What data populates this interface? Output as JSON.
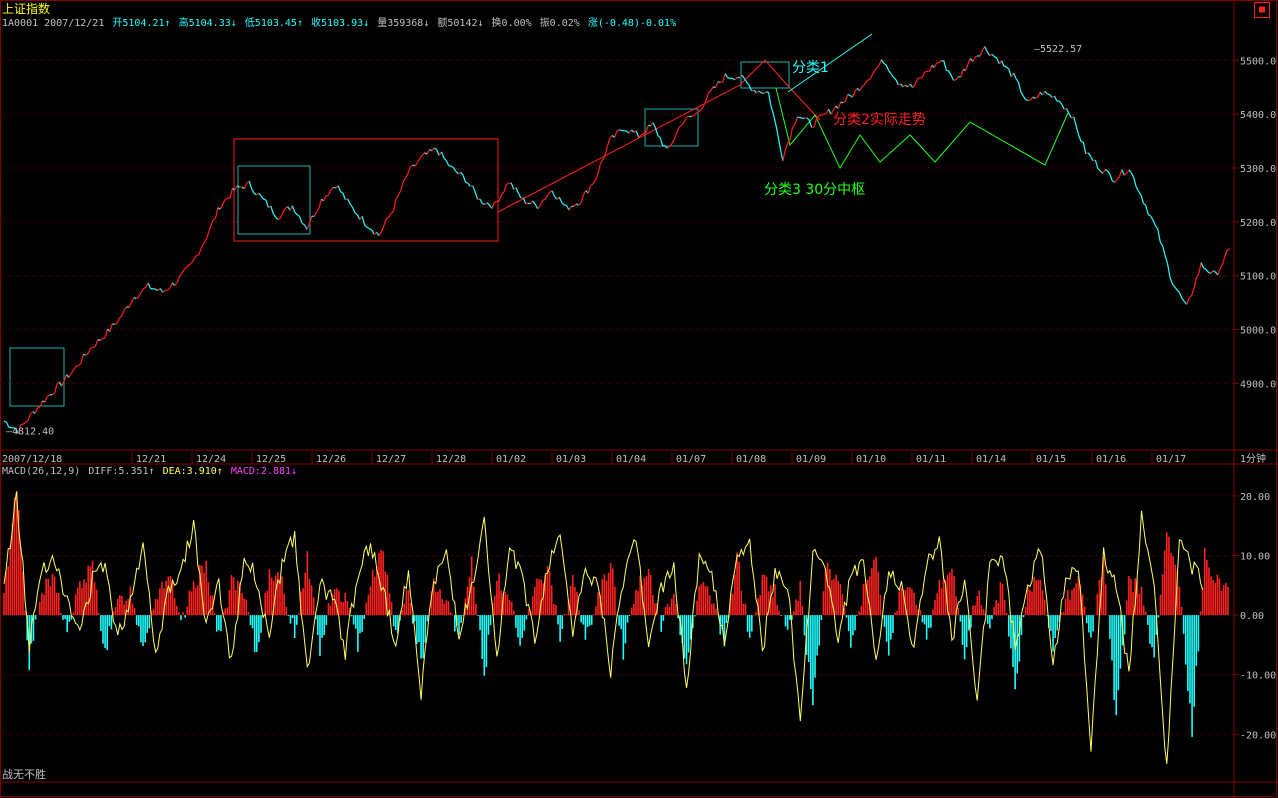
{
  "window": {
    "title": "上证指数",
    "close_glyph": "■"
  },
  "infobar": {
    "code_date": "1A0001  2007/12/21",
    "open": "开5104.21↑",
    "high": "高5104.33↓",
    "low": "低5103.45↑",
    "close": "收5103.93↓",
    "volume": "量359368↓",
    "amount": "额50142↓",
    "turnover": "换0.00%",
    "amplitude": "振0.02%",
    "change": "涨(-0.48)-0.01%"
  },
  "macd_header": {
    "name": "MACD(26,12,9)",
    "diff": "DIFF:5.351↑",
    "dea": "DEA:3.910↑",
    "macd": "MACD:2.881↓"
  },
  "footer": "战无不胜",
  "colors": {
    "up": "#ff2020",
    "down": "#20ffff",
    "grid": "#800000",
    "diff": "#ffff60",
    "box_cyan": "#20b0b0",
    "box_red": "#ff2020",
    "anno_green": "#20ff20"
  },
  "chart_data": [
    {
      "type": "line",
      "title": "",
      "y_ticks": [
        "5500.0",
        "5400.0",
        "5300.0",
        "5200.0",
        "5100.0",
        "5000.0",
        "4900.0"
      ],
      "ylim": [
        4780,
        5560
      ],
      "x_date_labels": [
        "2007/12/18",
        "12/21",
        "12/24",
        "12/25",
        "12/26",
        "12/27",
        "12/28",
        "01/02",
        "01/03",
        "01/04",
        "01/07",
        "01/08",
        "01/09",
        "01/10",
        "01/11",
        "01/14",
        "01/15",
        "01/16",
        "01/17"
      ],
      "period_label": "1分钟",
      "high_label": "5522.57",
      "low_label": "4812.40",
      "series": [
        {
          "values": [
            4830,
            4812.4,
            4845,
            4875,
            4900,
            4930,
            4965,
            4990,
            5020,
            5060,
            5080,
            5070,
            5090,
            5120,
            5170,
            5230,
            5260,
            5270,
            5240,
            5210,
            5230,
            5190,
            5240,
            5270,
            5230,
            5200,
            5175,
            5225,
            5290,
            5320,
            5335,
            5300,
            5280,
            5240,
            5230,
            5275,
            5240,
            5230,
            5260,
            5225,
            5240,
            5280,
            5350,
            5375,
            5360,
            5380,
            5330,
            5385,
            5400,
            5440,
            5470,
            5470,
            5445,
            5440,
            5320,
            5400,
            5380,
            5400,
            5420,
            5440,
            5470,
            5500,
            5460,
            5450,
            5480,
            5500,
            5460,
            5500,
            5522.57,
            5500,
            5470,
            5420,
            5440,
            5430,
            5400,
            5330,
            5300,
            5280,
            5300,
            5240,
            5180,
            5090,
            5040,
            5120,
            5100,
            5150
          ]
        }
      ],
      "annotations": [
        {
          "text": "分类1",
          "color": "#20ffff"
        },
        {
          "text": "分类2实际走势",
          "color": "#ff2020"
        },
        {
          "text": "分类3 30分中枢",
          "color": "#20ff20"
        }
      ]
    },
    {
      "type": "bar",
      "title": "MACD",
      "y_ticks": [
        "20.00",
        "10.00",
        "0.00",
        "-10.00",
        "-20.00"
      ],
      "ylim": [
        -28,
        23
      ],
      "series": [
        {
          "name": "MACD",
          "values": [
            3,
            22,
            -8,
            4,
            6,
            -3,
            5,
            8,
            -6,
            2,
            4,
            -5,
            3,
            7,
            -2,
            5,
            9,
            -4,
            6,
            3,
            -7,
            8,
            5,
            -3,
            10,
            -6,
            4,
            3,
            -5,
            6,
            11,
            -3,
            4,
            -8,
            5,
            2,
            -4,
            9,
            -10,
            6,
            3,
            -5,
            4,
            8,
            -3,
            6,
            -4,
            3,
            9,
            -6,
            5,
            7,
            -2,
            4,
            -9,
            6,
            3,
            -5,
            10,
            -4,
            6,
            4,
            -3,
            5,
            -16,
            8,
            6,
            -5,
            4,
            9,
            -7,
            6,
            3,
            -4,
            5,
            8,
            -6,
            4,
            -3,
            6,
            -12,
            4,
            7,
            -5,
            3,
            6,
            -4,
            9,
            -18,
            6,
            4,
            -8,
            14,
            5,
            -20,
            10,
            6,
            4
          ]
        },
        {
          "name": "DIFF",
          "values": [
            5,
            20,
            -5,
            8,
            10,
            2,
            -3,
            6,
            9,
            -4,
            3,
            12,
            -6,
            4,
            8,
            15,
            -2,
            5,
            -8,
            10,
            6,
            -4,
            9,
            13,
            -10,
            5,
            3,
            -6,
            7,
            12,
            4,
            -5,
            8,
            -13,
            6,
            10,
            -3,
            4,
            15,
            -8,
            12,
            6,
            -4,
            8,
            14,
            -3,
            7,
            5,
            -9,
            6,
            13,
            -5,
            4,
            8,
            -12,
            10,
            6,
            -4,
            9,
            12,
            -6,
            7,
            5,
            -18,
            11,
            8,
            -4,
            6,
            10,
            -8,
            7,
            5,
            -6,
            9,
            12,
            -4,
            6,
            -15,
            8,
            10,
            -5,
            4,
            12,
            -8,
            6,
            8,
            -22,
            10,
            5,
            -10,
            16,
            4,
            -26,
            12,
            8,
            5
          ]
        }
      ]
    }
  ]
}
